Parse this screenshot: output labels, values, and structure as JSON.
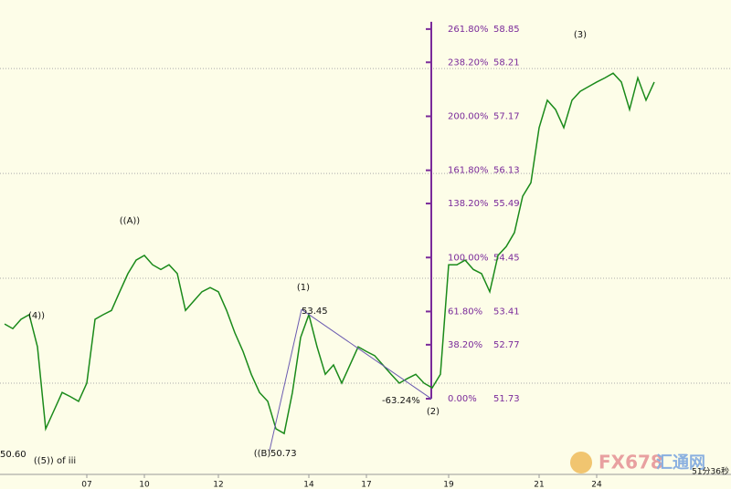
{
  "chart_data": {
    "type": "line",
    "categories": [
      null,
      null,
      null,
      null,
      null,
      null,
      null,
      null,
      null,
      null,
      "07",
      null,
      null,
      null,
      null,
      null,
      null,
      "10",
      null,
      null,
      null,
      null,
      null,
      null,
      null,
      null,
      "12",
      null,
      null,
      null,
      null,
      null,
      null,
      null,
      null,
      null,
      null,
      "14",
      null,
      null,
      null,
      null,
      null,
      null,
      "17",
      null,
      null,
      null,
      null,
      null,
      null,
      null,
      null,
      null,
      "19",
      null,
      null,
      null,
      null,
      null,
      null,
      null,
      null,
      null,
      null,
      "21",
      null,
      null,
      null,
      null,
      null,
      null,
      "24",
      null,
      null,
      null,
      null,
      null,
      null,
      null
    ],
    "series": [
      {
        "color": "#1a8a1a",
        "values": [
          53.17,
          53.08,
          53.26,
          53.35,
          52.73,
          51.15,
          51.5,
          51.85,
          51.77,
          51.68,
          52.03,
          53.26,
          53.35,
          53.43,
          53.79,
          54.14,
          54.4,
          54.49,
          54.31,
          54.22,
          54.31,
          54.14,
          53.43,
          53.61,
          53.79,
          53.87,
          53.79,
          53.43,
          53.0,
          52.64,
          52.2,
          51.85,
          51.68,
          51.15,
          51.06,
          51.85,
          52.91,
          53.35,
          52.73,
          52.2,
          52.38,
          52.03,
          52.38,
          52.73,
          52.64,
          52.56,
          52.38,
          52.2,
          52.03,
          52.12,
          52.2,
          52.03,
          51.94,
          52.2,
          54.31,
          54.31,
          54.4,
          54.22,
          54.14,
          53.79,
          54.49,
          54.66,
          54.93,
          55.63,
          55.89,
          56.95,
          57.48,
          57.3,
          56.95,
          57.48,
          57.65,
          57.74,
          57.83,
          57.91,
          58.0,
          57.83,
          57.3,
          57.91,
          57.48,
          57.83
        ]
      }
    ],
    "ylim": [
      50.36,
      59.41
    ],
    "grid_lines": [
      58.09,
      56.07,
      54.05,
      52.03
    ],
    "fib": {
      "percents": [
        261.8,
        238.2,
        200,
        161.8,
        138.2,
        100,
        61.8,
        38.2,
        0
      ],
      "percent_labels": [
        "261.80%",
        "238.20%",
        "200.00%",
        "161.80%",
        "138.20%",
        "100.00%",
        "61.80%",
        "38.20%",
        "0.00%"
      ],
      "prices": [
        58.85,
        58.21,
        57.17,
        56.13,
        55.49,
        54.45,
        53.41,
        52.77,
        51.73
      ],
      "color": "#7a2a9a"
    },
    "annotations": [
      "((A))",
      "(4))",
      "(1)",
      "(2)",
      "(3)",
      "((B)",
      "((5)) of iii"
    ],
    "price_labels": [
      {
        "value": 50.6,
        "label": "50.60"
      },
      50.73,
      53.45
    ],
    "retracement": {
      "value": -63.24,
      "label": "-63.24%"
    },
    "watermark": [
      "FX678",
      "汇通网"
    ],
    "timer": "51分36秒"
  }
}
